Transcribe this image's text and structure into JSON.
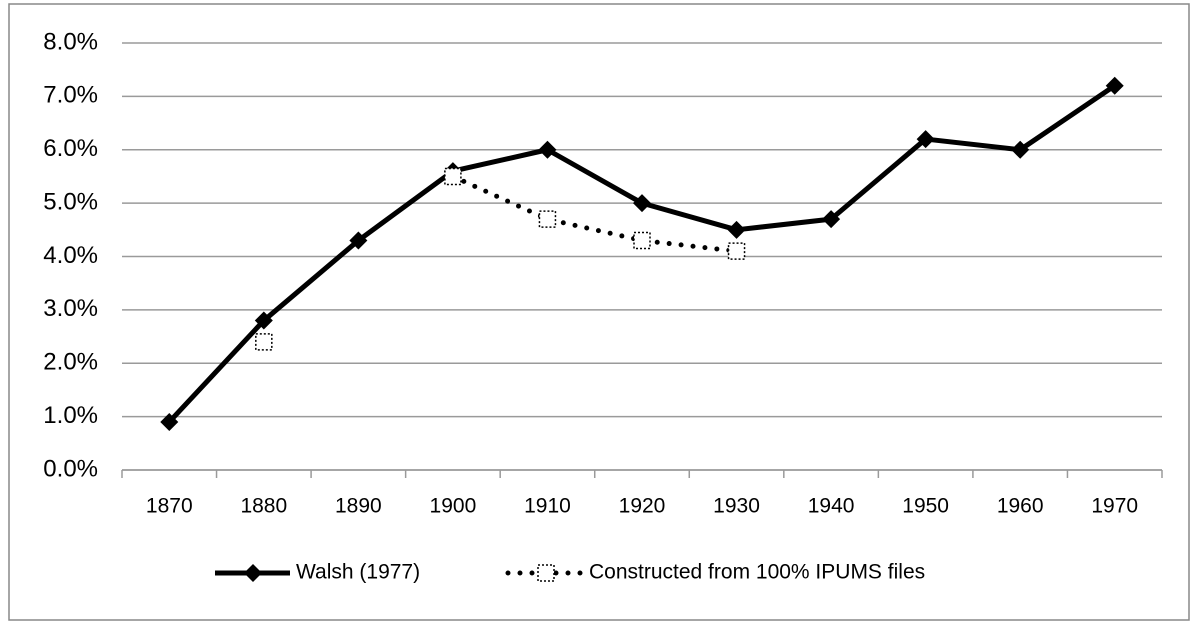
{
  "chart_data": {
    "type": "line",
    "categories": [
      "1870",
      "1880",
      "1890",
      "1900",
      "1910",
      "1920",
      "1930",
      "1940",
      "1950",
      "1960",
      "1970"
    ],
    "series": [
      {
        "name": "Walsh (1977)",
        "color": "#000000",
        "style": "solid",
        "marker": "diamond",
        "values": [
          0.9,
          2.8,
          4.3,
          5.6,
          6.0,
          5.0,
          4.5,
          4.7,
          6.2,
          6.0,
          7.2
        ]
      },
      {
        "name": "Constructed from 100% IPUMS files",
        "color": "#000000",
        "style": "dotted",
        "marker": "open-square",
        "values": [
          null,
          2.4,
          null,
          5.5,
          4.7,
          4.3,
          4.1,
          null,
          null,
          null,
          null
        ]
      }
    ],
    "ylim": [
      0,
      8
    ],
    "yticks": [
      {
        "value": 0,
        "label": "0.0%"
      },
      {
        "value": 1,
        "label": "1.0%"
      },
      {
        "value": 2,
        "label": "2.0%"
      },
      {
        "value": 3,
        "label": "3.0%"
      },
      {
        "value": 4,
        "label": "4.0%"
      },
      {
        "value": 5,
        "label": "5.0%"
      },
      {
        "value": 6,
        "label": "6.0%"
      },
      {
        "value": 7,
        "label": "7.0%"
      },
      {
        "value": 8,
        "label": "8.0%"
      }
    ],
    "grid": true,
    "legend": "bottom"
  }
}
